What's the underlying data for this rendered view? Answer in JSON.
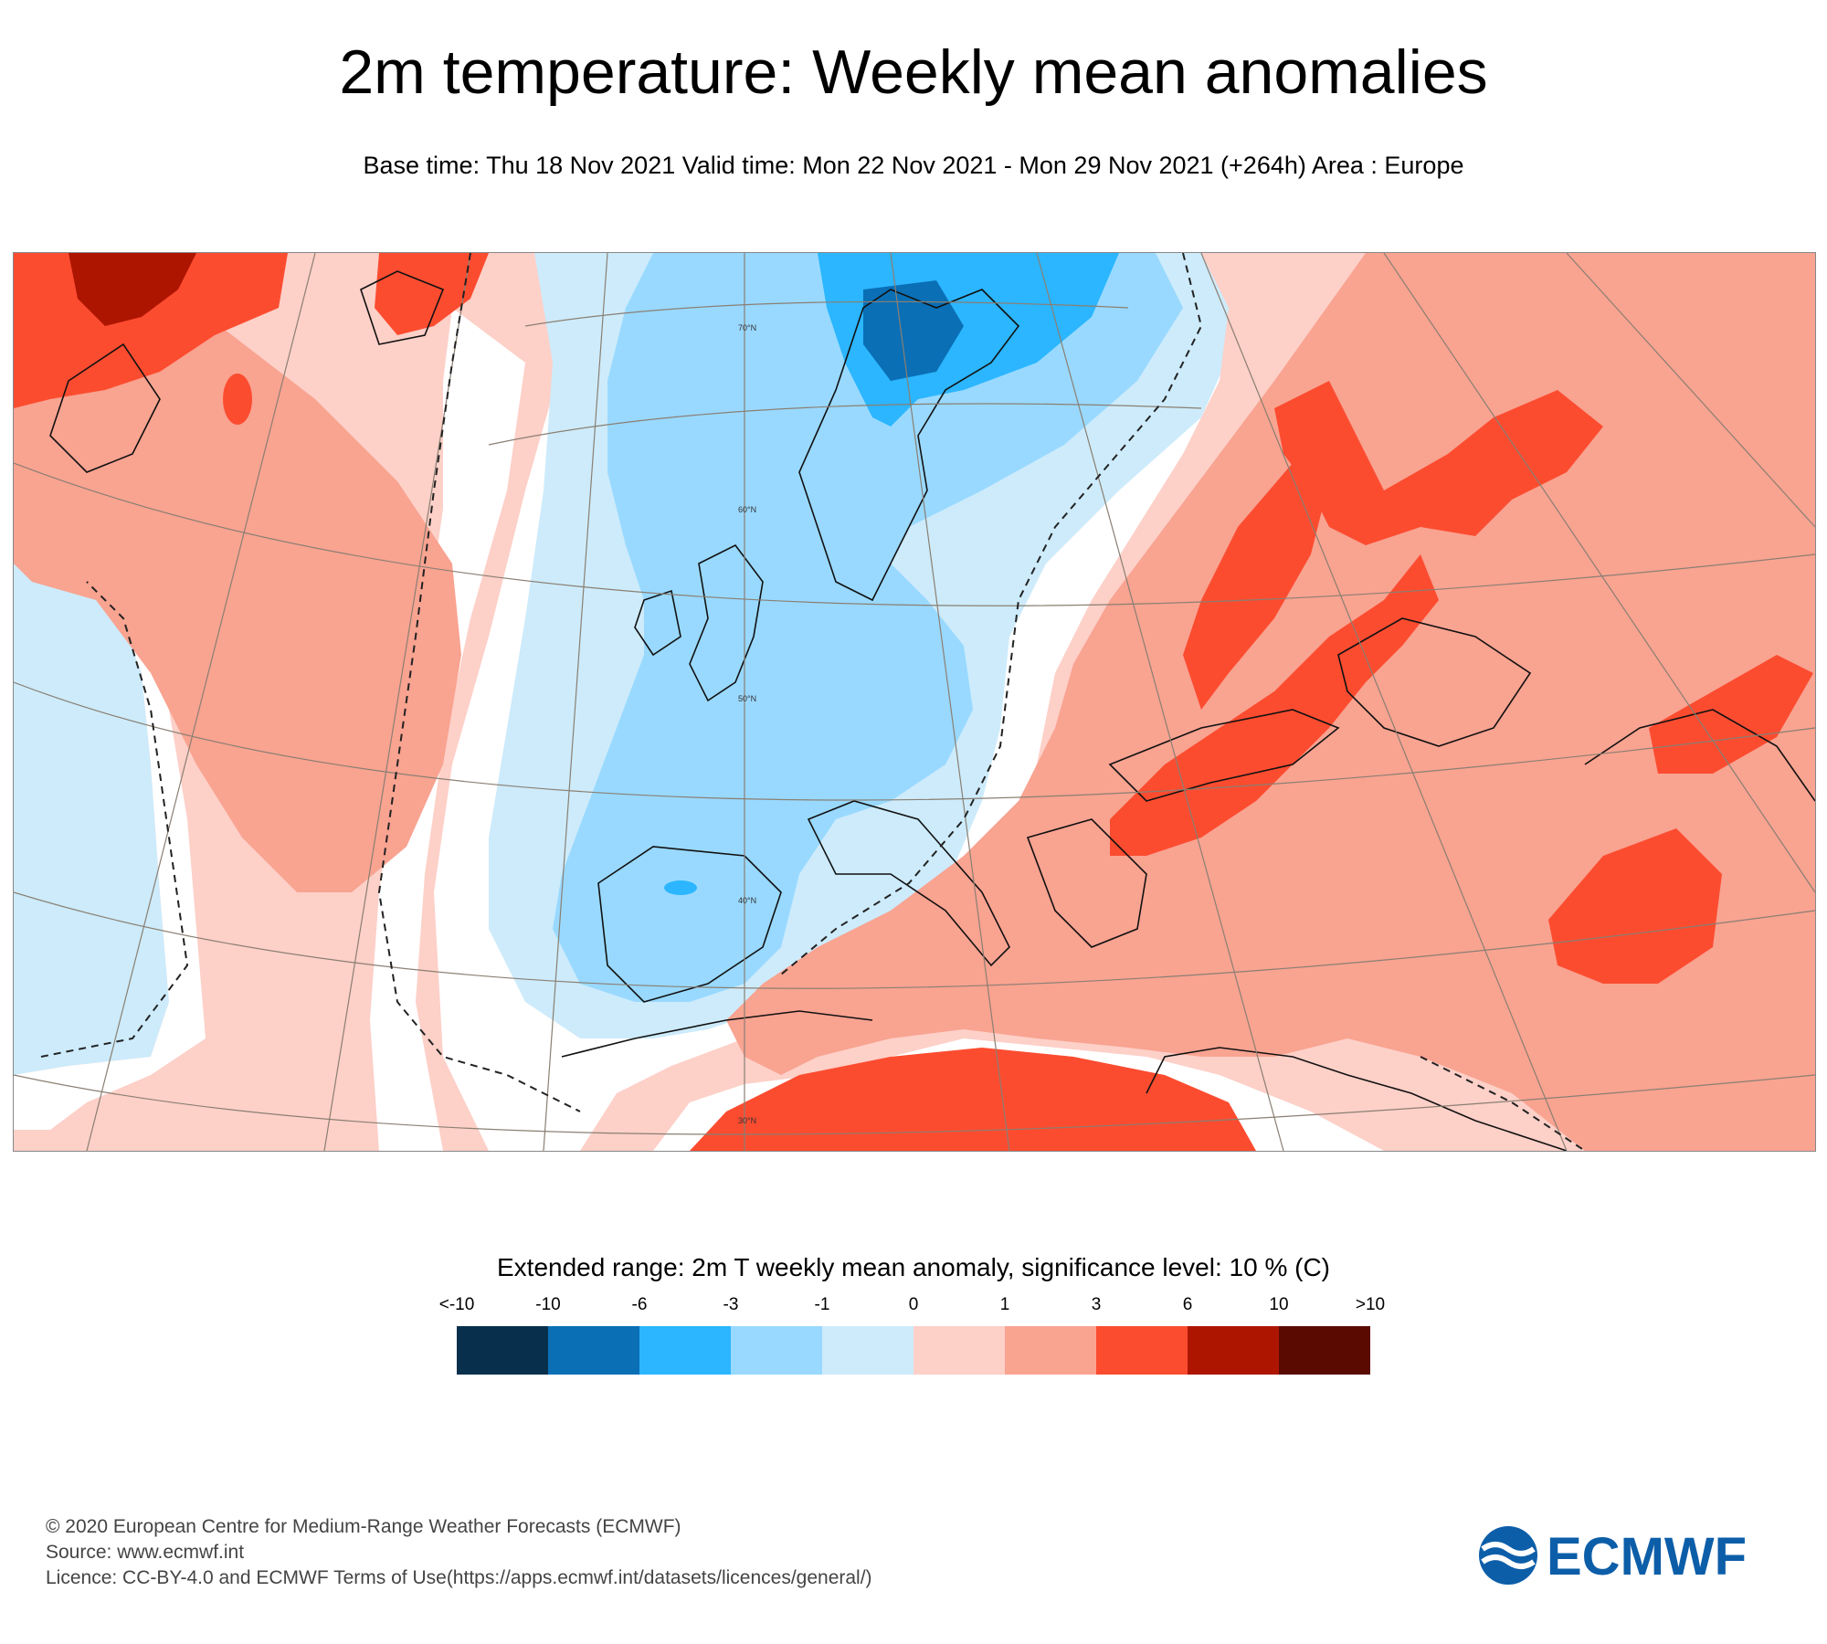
{
  "header": {
    "title": "2m temperature: Weekly mean anomalies",
    "subtitle": "Base time: Thu 18 Nov 2021 Valid time: Mon 22 Nov 2021 - Mon 29 Nov 2021 (+264h) Area : Europe"
  },
  "map": {
    "region": "Europe",
    "gridlines": {
      "lat_labels": [
        "70°N",
        "60°N",
        "50°N",
        "40°N",
        "30°N"
      ]
    }
  },
  "legend": {
    "title": "Extended range: 2m T weekly mean anomaly, significance level: 10 % (C)",
    "tick_labels": [
      "<-10",
      "-10",
      "-6",
      "-3",
      "-1",
      "0",
      "1",
      "3",
      "6",
      "10",
      ">10"
    ],
    "colors": [
      "#08304d",
      "#0a6fb5",
      "#2bb6ff",
      "#99d9ff",
      "#cdebfb",
      "#fdd0c8",
      "#f9a391",
      "#fc4c30",
      "#ae1500",
      "#5a0a00"
    ]
  },
  "footer": {
    "line1": "© 2020 European Centre for Medium-Range Weather Forecasts (ECMWF)",
    "line2": "Source: www.ecmwf.int",
    "line3": "Licence: CC-BY-4.0 and ECMWF Terms of Use(https://apps.ecmwf.int/datasets/licences/general/)"
  },
  "logo": {
    "text": "ECMWF",
    "color": "#0d5ea8"
  }
}
